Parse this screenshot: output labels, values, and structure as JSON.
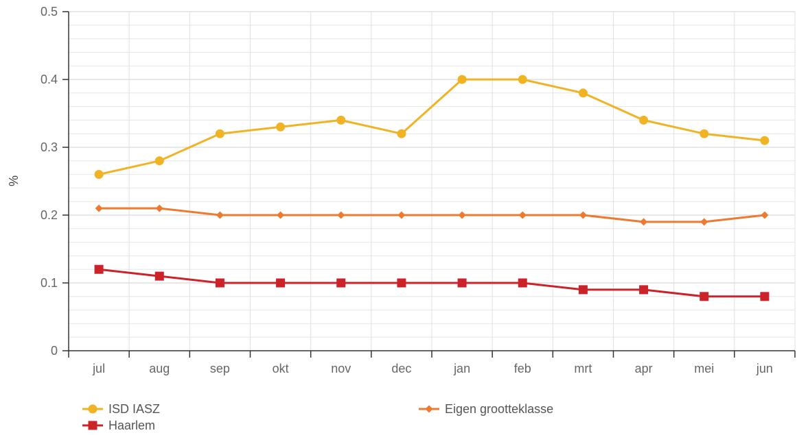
{
  "chart_data": {
    "type": "line",
    "categories": [
      "jul",
      "aug",
      "sep",
      "okt",
      "nov",
      "dec",
      "jan",
      "feb",
      "mrt",
      "apr",
      "mei",
      "jun"
    ],
    "series": [
      {
        "name": "ISD IASZ",
        "color": "#f0b323",
        "marker": "circle",
        "values": [
          0.26,
          0.28,
          0.32,
          0.33,
          0.34,
          0.32,
          0.4,
          0.4,
          0.38,
          0.34,
          0.32,
          0.31
        ]
      },
      {
        "name": "Eigen grootteklasse",
        "color": "#ec7a30",
        "marker": "diamond",
        "values": [
          0.21,
          0.21,
          0.2,
          0.2,
          0.2,
          0.2,
          0.2,
          0.2,
          0.2,
          0.19,
          0.19,
          0.2
        ]
      },
      {
        "name": "Haarlem",
        "color": "#cc2229",
        "marker": "square",
        "values": [
          0.12,
          0.11,
          0.1,
          0.1,
          0.1,
          0.1,
          0.1,
          0.1,
          0.09,
          0.09,
          0.08,
          0.08
        ]
      }
    ],
    "xlabel": "",
    "ylabel": "%",
    "ylim": [
      0,
      0.5
    ],
    "yticks": [
      "0",
      "0.1",
      "0.2",
      "0.3",
      "0.4",
      "0.5"
    ],
    "grid": true,
    "legend_position": "bottom-left"
  }
}
